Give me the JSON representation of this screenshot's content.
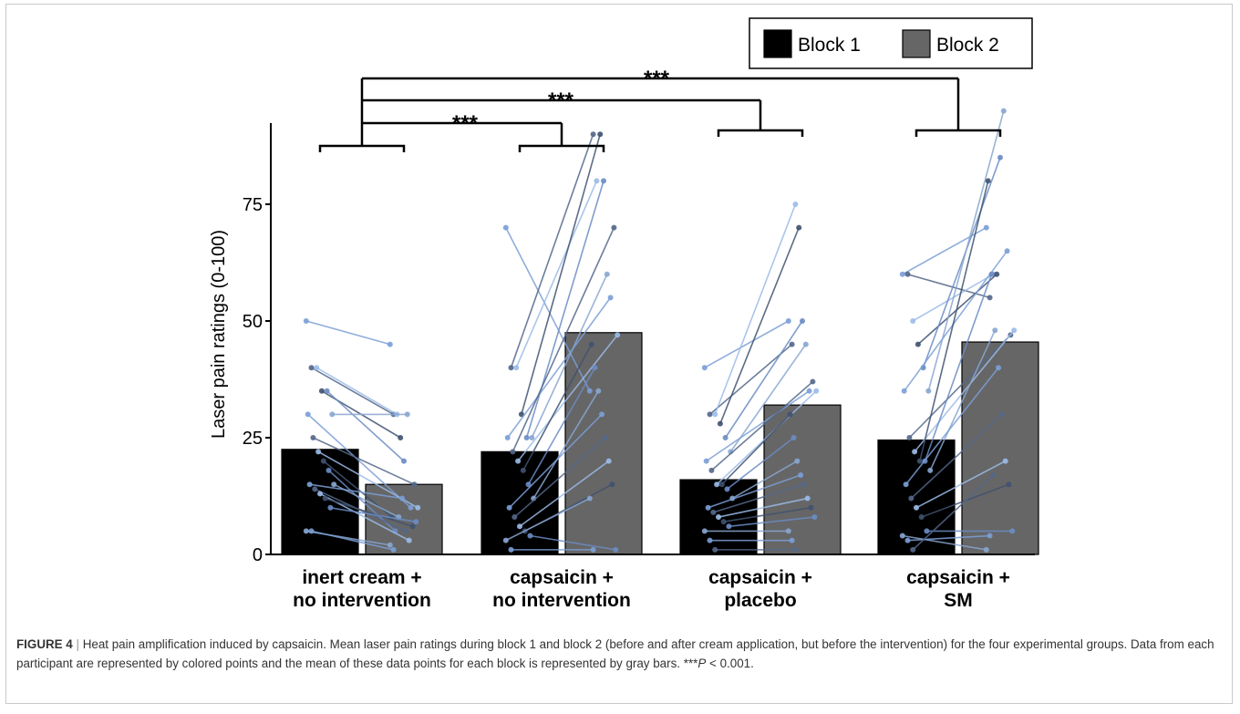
{
  "figure": {
    "caption_label": "FIGURE 4",
    "caption_sep": "|",
    "caption_text": "Heat pain amplification induced by capsaicin. Mean laser pain ratings during block 1 and block 2 (before and after cream application, but before the intervention) for the four experimental groups. Data from each participant are represented by colored points and the mean of these data points for each block is represented by gray bars.",
    "caption_stat_stars": "***",
    "caption_stat_p": "P",
    "caption_stat_rest": " < 0.001."
  },
  "chart_data": {
    "type": "bar",
    "ylabel": "Laser pain ratings (0-100)",
    "ylim": [
      0,
      100
    ],
    "yticks": [
      0,
      25,
      50,
      75
    ],
    "legend_position": "top-right",
    "categories": [
      [
        "inert cream +",
        "no intervention"
      ],
      [
        "capsaicin +",
        "no intervention"
      ],
      [
        "capsaicin +",
        "placebo"
      ],
      [
        "capsaicin +",
        "SM"
      ]
    ],
    "series": [
      {
        "name": "Block 1",
        "color": "#000000",
        "values": [
          22.5,
          22,
          16,
          24.5
        ]
      },
      {
        "name": "Block 2",
        "color": "#666666",
        "values": [
          15,
          47.5,
          32,
          45.5
        ]
      }
    ],
    "participants": [
      [
        [
          50,
          45
        ],
        [
          40,
          30
        ],
        [
          40,
          30
        ],
        [
          35,
          25
        ],
        [
          35,
          20
        ],
        [
          30,
          30
        ],
        [
          30,
          10
        ],
        [
          25,
          15
        ],
        [
          22,
          10
        ],
        [
          20,
          8
        ],
        [
          18,
          5
        ],
        [
          15,
          8
        ],
        [
          15,
          12
        ],
        [
          14,
          5
        ],
        [
          13,
          3
        ],
        [
          12,
          6
        ],
        [
          10,
          7
        ],
        [
          5,
          2
        ],
        [
          5,
          1
        ]
      ],
      [
        [
          70,
          35
        ],
        [
          40,
          90
        ],
        [
          40,
          80
        ],
        [
          30,
          90
        ],
        [
          25,
          80
        ],
        [
          25,
          60
        ],
        [
          25,
          55
        ],
        [
          22,
          70
        ],
        [
          20,
          47
        ],
        [
          18,
          45
        ],
        [
          15,
          40
        ],
        [
          12,
          35
        ],
        [
          10,
          30
        ],
        [
          8,
          25
        ],
        [
          6,
          20
        ],
        [
          5,
          15
        ],
        [
          4,
          1
        ],
        [
          3,
          12
        ],
        [
          1,
          1
        ]
      ],
      [
        [
          40,
          50
        ],
        [
          30,
          45
        ],
        [
          30,
          75
        ],
        [
          28,
          70
        ],
        [
          25,
          50
        ],
        [
          22,
          45
        ],
        [
          20,
          35
        ],
        [
          18,
          37
        ],
        [
          15,
          35
        ],
        [
          15,
          30
        ],
        [
          14,
          25
        ],
        [
          12,
          20
        ],
        [
          10,
          17
        ],
        [
          9,
          15
        ],
        [
          8,
          12
        ],
        [
          7,
          10
        ],
        [
          6,
          8
        ],
        [
          5,
          5
        ],
        [
          3,
          3
        ],
        [
          1,
          1
        ]
      ],
      [
        [
          60,
          70
        ],
        [
          60,
          55
        ],
        [
          50,
          60
        ],
        [
          45,
          60
        ],
        [
          40,
          85
        ],
        [
          35,
          95
        ],
        [
          35,
          65
        ],
        [
          25,
          47
        ],
        [
          22,
          48
        ],
        [
          20,
          80
        ],
        [
          20,
          60
        ],
        [
          18,
          48
        ],
        [
          15,
          40
        ],
        [
          12,
          30
        ],
        [
          10,
          20
        ],
        [
          8,
          15
        ],
        [
          5,
          5
        ],
        [
          4,
          1
        ],
        [
          3,
          4
        ],
        [
          1,
          17
        ]
      ]
    ],
    "significance": [
      {
        "from": 0,
        "to": 1,
        "label": "***"
      },
      {
        "from": 0,
        "to": 2,
        "label": "***"
      },
      {
        "from": 0,
        "to": 3,
        "label": "***"
      }
    ]
  }
}
